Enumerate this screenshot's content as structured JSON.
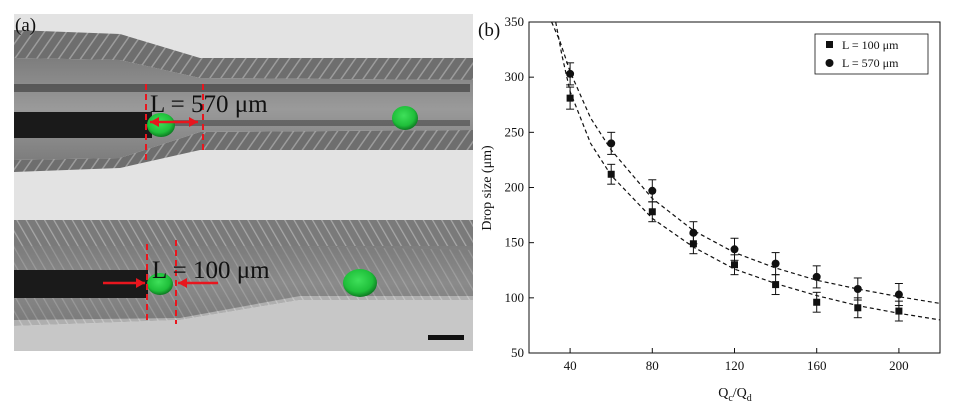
{
  "panel_a": {
    "label": "(a)",
    "top_annotation": "L = 570 μm",
    "bottom_annotation": "L = 100 μm"
  },
  "panel_b": {
    "label": "(b)"
  },
  "chart_data": {
    "type": "scatter",
    "title": "",
    "xlabel": "Qc/Qd",
    "xlabel_main": "Q",
    "xlabel_sub1": "c",
    "xlabel_slash": "/Q",
    "xlabel_sub2": "d",
    "ylabel": "Drop size (μm)",
    "xlim": [
      20,
      220
    ],
    "ylim": [
      50,
      350
    ],
    "xticks": [
      40,
      80,
      120,
      160,
      200
    ],
    "yticks": [
      50,
      100,
      150,
      200,
      250,
      300,
      350
    ],
    "legend_position": "top-right",
    "series": [
      {
        "name": "L = 100 μm",
        "marker": "square",
        "x": [
          40,
          60,
          80,
          100,
          120,
          140,
          160,
          180,
          200
        ],
        "y": [
          281,
          212,
          178,
          149,
          130,
          112,
          96,
          91,
          88
        ],
        "err": [
          10,
          9,
          9,
          9,
          9,
          9,
          9,
          9,
          9
        ]
      },
      {
        "name": "L = 570 μm",
        "marker": "circle",
        "x": [
          40,
          60,
          80,
          100,
          120,
          140,
          160,
          180,
          200
        ],
        "y": [
          303,
          240,
          197,
          159,
          144,
          131,
          119,
          108,
          103
        ],
        "err": [
          10,
          10,
          10,
          10,
          10,
          10,
          10,
          10,
          10
        ]
      }
    ],
    "fit_curves": [
      {
        "name": "fit L = 570 μm",
        "style": "dashed",
        "x": [
          31,
          35,
          40,
          50,
          60,
          80,
          100,
          120,
          140,
          160,
          180,
          200,
          220
        ],
        "y": [
          350,
          333,
          305,
          263,
          234,
          190,
          161,
          141,
          127,
          116,
          108,
          101,
          95
        ]
      },
      {
        "name": "fit L = 100 μm",
        "style": "dashed",
        "x": [
          33,
          36,
          40,
          50,
          60,
          80,
          100,
          120,
          140,
          160,
          180,
          200,
          220
        ],
        "y": [
          350,
          320,
          287,
          240,
          211,
          172,
          146,
          126,
          113,
          102,
          93,
          86,
          80
        ]
      }
    ]
  },
  "colors": {
    "droplet": "#1fbf3a",
    "annotation": "#e8161e",
    "axis": "#111111"
  }
}
